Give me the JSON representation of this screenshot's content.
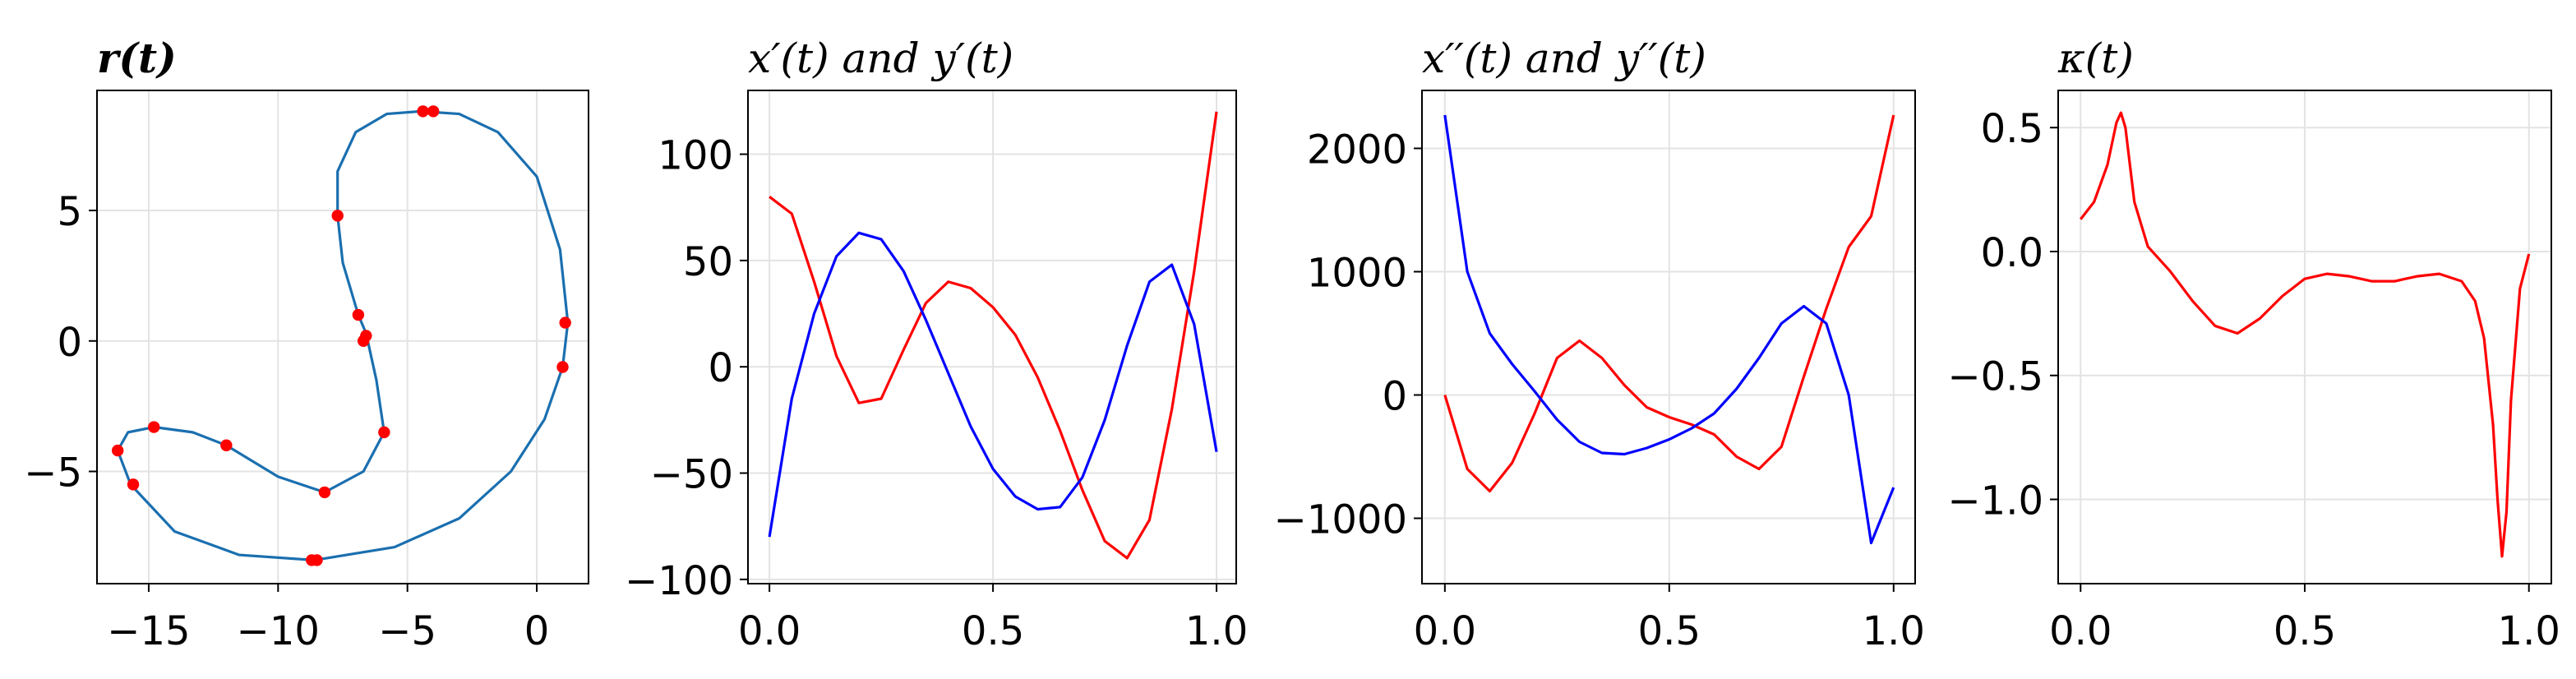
{
  "chart_data": [
    {
      "type": "line",
      "title": "r(t)",
      "grid": true,
      "xlim": [
        -17,
        2
      ],
      "ylim": [
        -9.3,
        9.6
      ],
      "xticks": [
        {
          "value": -15,
          "label": "−15"
        },
        {
          "value": -10,
          "label": "−10"
        },
        {
          "value": -5,
          "label": "−5"
        },
        0
      ],
      "yticks": [
        {
          "value": -5,
          "label": "−5"
        },
        0,
        5
      ],
      "series": [
        {
          "color": "#1a6faf",
          "x": [
            -4.5,
            -3,
            -1.5,
            0,
            0.9,
            1.2,
            1,
            0.3,
            -1,
            -3,
            -5.5,
            -8.6,
            -11.5,
            -14,
            -15.7,
            -16.2,
            -15.8,
            -14.8,
            -13.3,
            -12,
            -10,
            -8.2,
            -6.7,
            -5.9,
            -6.2,
            -6.6,
            -6.9,
            -7.5,
            -7.7,
            -7.7,
            -7,
            -5.8,
            -4.5
          ],
          "values": [
            8.8,
            8.7,
            8,
            6.3,
            3.5,
            0.7,
            -1,
            -3,
            -5,
            -6.8,
            -7.9,
            -8.4,
            -8.2,
            -7.3,
            -5.5,
            -4.2,
            -3.5,
            -3.3,
            -3.5,
            -4,
            -5.2,
            -5.8,
            -5,
            -3.5,
            -1.5,
            0.3,
            1,
            3,
            4.8,
            6.5,
            8,
            8.7,
            8.8
          ]
        },
        {
          "type": "scatter",
          "color": "#ff0000",
          "x": [
            -4.4,
            -4.0,
            1.1,
            1.0,
            -8.7,
            -8.5,
            -15.6,
            -16.2,
            -14.8,
            -12.0,
            -8.2,
            -5.9,
            -6.6,
            -6.7,
            -6.9,
            -7.7
          ],
          "values": [
            8.8,
            8.8,
            0.7,
            -1.0,
            -8.4,
            -8.4,
            -5.5,
            -4.2,
            -3.3,
            -4.0,
            -5.8,
            -3.5,
            0.2,
            0.0,
            1.0,
            4.8
          ]
        }
      ]
    },
    {
      "type": "line",
      "title": "x′(t) and y′(t)",
      "grid": true,
      "xlim": [
        -0.048,
        1.044
      ],
      "ylim": [
        -102,
        130
      ],
      "xticks": [
        {
          "value": 0,
          "label": "0.0"
        },
        {
          "value": 0.5,
          "label": "0.5"
        },
        {
          "value": 1,
          "label": "1.0"
        }
      ],
      "yticks": [
        {
          "value": -100,
          "label": "−100"
        },
        {
          "value": -50,
          "label": "−50"
        },
        0,
        50,
        100
      ],
      "x": [
        0,
        0.05,
        0.1,
        0.15,
        0.2,
        0.25,
        0.3,
        0.35,
        0.4,
        0.45,
        0.5,
        0.55,
        0.6,
        0.65,
        0.7,
        0.75,
        0.8,
        0.85,
        0.9,
        0.95,
        1
      ],
      "series": [
        {
          "color": "#ff0000",
          "values": [
            80,
            72,
            40,
            5,
            -17,
            -15,
            8,
            30,
            40,
            37,
            28,
            15,
            -5,
            -30,
            -58,
            -82,
            -90,
            -72,
            -20,
            45,
            120
          ]
        },
        {
          "color": "#0000ff",
          "values": [
            -80,
            -15,
            25,
            52,
            63,
            60,
            45,
            22,
            -3,
            -28,
            -48,
            -61,
            -67,
            -66,
            -52,
            -25,
            10,
            40,
            48,
            20,
            -40
          ]
        }
      ]
    },
    {
      "type": "line",
      "title": "x′′(t) and y′′(t)",
      "grid": true,
      "xlim": [
        -0.051,
        1.048
      ],
      "ylim": [
        -1530,
        2470
      ],
      "xticks": [
        {
          "value": 0,
          "label": "0.0"
        },
        {
          "value": 0.5,
          "label": "0.5"
        },
        {
          "value": 1,
          "label": "1.0"
        }
      ],
      "yticks": [
        {
          "value": -1000,
          "label": "−1000"
        },
        0,
        1000,
        2000
      ],
      "x": [
        0,
        0.05,
        0.1,
        0.15,
        0.2,
        0.25,
        0.3,
        0.35,
        0.4,
        0.45,
        0.5,
        0.55,
        0.6,
        0.65,
        0.7,
        0.75,
        0.8,
        0.85,
        0.9,
        0.95,
        1
      ],
      "series": [
        {
          "color": "#ff0000",
          "values": [
            0,
            -600,
            -780,
            -550,
            -150,
            300,
            440,
            300,
            80,
            -100,
            -180,
            -240,
            -320,
            -500,
            -600,
            -420,
            150,
            700,
            1200,
            1450,
            2270
          ]
        },
        {
          "color": "#0000ff",
          "values": [
            2270,
            1000,
            500,
            250,
            30,
            -200,
            -380,
            -470,
            -480,
            -430,
            -360,
            -270,
            -150,
            50,
            300,
            580,
            720,
            580,
            0,
            -1200,
            -750
          ]
        }
      ]
    },
    {
      "type": "line",
      "title": "κ(t)",
      "grid": true,
      "xlim": [
        -0.05,
        1.05
      ],
      "ylim": [
        -1.34,
        0.65
      ],
      "xticks": [
        {
          "value": 0,
          "label": "0.0"
        },
        {
          "value": 0.5,
          "label": "0.5"
        },
        {
          "value": 1,
          "label": "1.0"
        }
      ],
      "yticks": [
        {
          "value": -1,
          "label": "−1.0"
        },
        {
          "value": -0.5,
          "label": "−0.5"
        },
        {
          "value": 0,
          "label": "0.0"
        },
        0.5
      ],
      "x": [
        0,
        0.03,
        0.06,
        0.08,
        0.09,
        0.1,
        0.12,
        0.15,
        0.2,
        0.25,
        0.3,
        0.35,
        0.4,
        0.45,
        0.5,
        0.55,
        0.6,
        0.65,
        0.7,
        0.75,
        0.8,
        0.85,
        0.88,
        0.9,
        0.92,
        0.93,
        0.94,
        0.95,
        0.96,
        0.98,
        1.0
      ],
      "series": [
        {
          "color": "#ff0000",
          "values": [
            0.13,
            0.2,
            0.35,
            0.52,
            0.56,
            0.5,
            0.2,
            0.02,
            -0.08,
            -0.2,
            -0.3,
            -0.33,
            -0.27,
            -0.18,
            -0.11,
            -0.09,
            -0.1,
            -0.12,
            -0.12,
            -0.1,
            -0.09,
            -0.12,
            -0.2,
            -0.35,
            -0.7,
            -1.0,
            -1.23,
            -1.05,
            -0.6,
            -0.15,
            -0.01
          ]
        }
      ]
    }
  ]
}
